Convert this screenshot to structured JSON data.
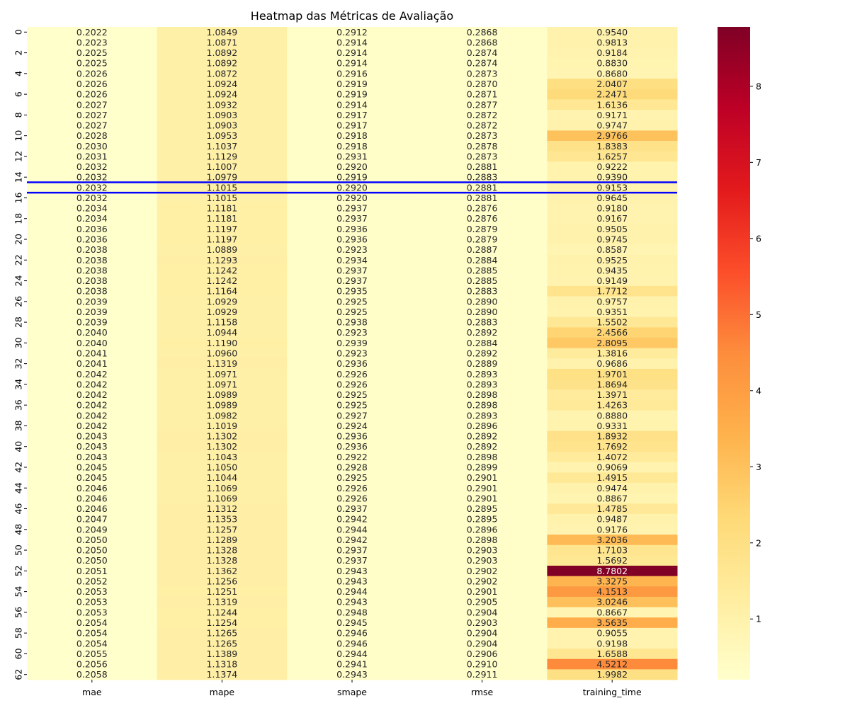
{
  "chart_data": {
    "type": "heatmap",
    "title": "Heatmap das Métricas de Avaliação",
    "columns": [
      "mae",
      "mape",
      "smape",
      "rmse",
      "training_time"
    ],
    "row_labels": [
      0,
      2,
      4,
      6,
      8,
      10,
      12,
      14,
      16,
      18,
      20,
      22,
      24,
      26,
      28,
      30,
      32,
      34,
      36,
      38,
      40,
      42,
      44,
      46,
      48,
      50,
      52,
      54,
      56,
      58,
      60,
      62
    ],
    "colormap": "YlOrRd",
    "color_range": [
      0.2022,
      8.7802
    ],
    "colorbar_ticks": [
      1,
      2,
      3,
      4,
      5,
      6,
      7,
      8
    ],
    "highlighted_row": 15,
    "highlight_color": "#0000ff",
    "rows": [
      [
        0.2022,
        1.0849,
        0.2912,
        0.2868,
        0.954
      ],
      [
        0.2023,
        1.0871,
        0.2914,
        0.2868,
        0.9813
      ],
      [
        0.2025,
        1.0892,
        0.2914,
        0.2874,
        0.9184
      ],
      [
        0.2025,
        1.0892,
        0.2914,
        0.2874,
        0.883
      ],
      [
        0.2026,
        1.0872,
        0.2916,
        0.2873,
        0.868
      ],
      [
        0.2026,
        1.0924,
        0.2919,
        0.287,
        2.0407
      ],
      [
        0.2026,
        1.0924,
        0.2919,
        0.2871,
        2.2471
      ],
      [
        0.2027,
        1.0932,
        0.2914,
        0.2877,
        1.6136
      ],
      [
        0.2027,
        1.0903,
        0.2917,
        0.2872,
        0.9171
      ],
      [
        0.2027,
        1.0903,
        0.2917,
        0.2872,
        0.9747
      ],
      [
        0.2028,
        1.0953,
        0.2918,
        0.2873,
        2.9766
      ],
      [
        0.203,
        1.1037,
        0.2918,
        0.2878,
        1.8383
      ],
      [
        0.2031,
        1.1129,
        0.2931,
        0.2873,
        1.6257
      ],
      [
        0.2032,
        1.1007,
        0.292,
        0.2881,
        0.9222
      ],
      [
        0.2032,
        1.0979,
        0.2919,
        0.2883,
        0.939
      ],
      [
        0.2032,
        1.1015,
        0.292,
        0.2881,
        0.9153
      ],
      [
        0.2032,
        1.1015,
        0.292,
        0.2881,
        0.9645
      ],
      [
        0.2034,
        1.1181,
        0.2937,
        0.2876,
        0.918
      ],
      [
        0.2034,
        1.1181,
        0.2937,
        0.2876,
        0.9167
      ],
      [
        0.2036,
        1.1197,
        0.2936,
        0.2879,
        0.9505
      ],
      [
        0.2036,
        1.1197,
        0.2936,
        0.2879,
        0.9745
      ],
      [
        0.2038,
        1.0889,
        0.2923,
        0.2887,
        0.8587
      ],
      [
        0.2038,
        1.1293,
        0.2934,
        0.2884,
        0.9525
      ],
      [
        0.2038,
        1.1242,
        0.2937,
        0.2885,
        0.9435
      ],
      [
        0.2038,
        1.1242,
        0.2937,
        0.2885,
        0.9149
      ],
      [
        0.2038,
        1.1164,
        0.2935,
        0.2883,
        1.7712
      ],
      [
        0.2039,
        1.0929,
        0.2925,
        0.289,
        0.9757
      ],
      [
        0.2039,
        1.0929,
        0.2925,
        0.289,
        0.9351
      ],
      [
        0.2039,
        1.1158,
        0.2938,
        0.2883,
        1.5502
      ],
      [
        0.204,
        1.0944,
        0.2923,
        0.2892,
        2.4566
      ],
      [
        0.204,
        1.119,
        0.2939,
        0.2884,
        2.8095
      ],
      [
        0.2041,
        1.096,
        0.2923,
        0.2892,
        1.3816
      ],
      [
        0.2041,
        1.1319,
        0.2936,
        0.2889,
        0.9686
      ],
      [
        0.2042,
        1.0971,
        0.2926,
        0.2893,
        1.9701
      ],
      [
        0.2042,
        1.0971,
        0.2926,
        0.2893,
        1.8694
      ],
      [
        0.2042,
        1.0989,
        0.2925,
        0.2898,
        1.3971
      ],
      [
        0.2042,
        1.0989,
        0.2925,
        0.2898,
        1.4263
      ],
      [
        0.2042,
        1.0982,
        0.2927,
        0.2893,
        0.888
      ],
      [
        0.2042,
        1.1019,
        0.2924,
        0.2896,
        0.9331
      ],
      [
        0.2043,
        1.1302,
        0.2936,
        0.2892,
        1.8932
      ],
      [
        0.2043,
        1.1302,
        0.2936,
        0.2892,
        1.7692
      ],
      [
        0.2043,
        1.1043,
        0.2922,
        0.2898,
        1.4072
      ],
      [
        0.2045,
        1.105,
        0.2928,
        0.2899,
        0.9069
      ],
      [
        0.2045,
        1.1044,
        0.2925,
        0.2901,
        1.4915
      ],
      [
        0.2046,
        1.1069,
        0.2926,
        0.2901,
        0.9474
      ],
      [
        0.2046,
        1.1069,
        0.2926,
        0.2901,
        0.8867
      ],
      [
        0.2046,
        1.1312,
        0.2937,
        0.2895,
        1.4785
      ],
      [
        0.2047,
        1.1353,
        0.2942,
        0.2895,
        0.9487
      ],
      [
        0.2049,
        1.1257,
        0.2944,
        0.2896,
        0.9176
      ],
      [
        0.205,
        1.1289,
        0.2942,
        0.2898,
        3.2036
      ],
      [
        0.205,
        1.1328,
        0.2937,
        0.2903,
        1.7103
      ],
      [
        0.205,
        1.1328,
        0.2937,
        0.2903,
        1.5692
      ],
      [
        0.2051,
        1.1362,
        0.2943,
        0.2902,
        8.7802
      ],
      [
        0.2052,
        1.1256,
        0.2943,
        0.2902,
        3.3275
      ],
      [
        0.2053,
        1.1251,
        0.2944,
        0.2901,
        4.1513
      ],
      [
        0.2053,
        1.1319,
        0.2943,
        0.2905,
        3.0246
      ],
      [
        0.2053,
        1.1244,
        0.2948,
        0.2904,
        0.8667
      ],
      [
        0.2054,
        1.1254,
        0.2945,
        0.2903,
        3.5635
      ],
      [
        0.2054,
        1.1265,
        0.2946,
        0.2904,
        0.9055
      ],
      [
        0.2054,
        1.1265,
        0.2946,
        0.2904,
        0.9198
      ],
      [
        0.2055,
        1.1389,
        0.2944,
        0.2906,
        1.6588
      ],
      [
        0.2056,
        1.1318,
        0.2941,
        0.291,
        4.5212
      ],
      [
        0.2058,
        1.1374,
        0.2943,
        0.2911,
        1.9982
      ]
    ]
  }
}
